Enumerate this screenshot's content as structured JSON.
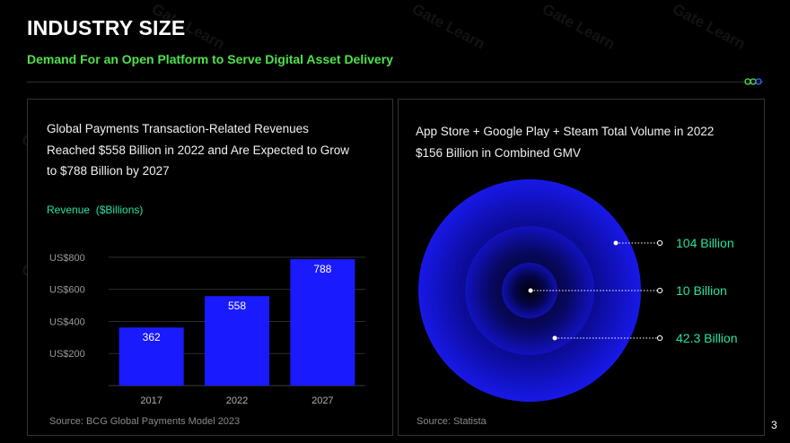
{
  "header": {
    "title": "INDUSTRY SIZE",
    "subtitle": "Demand For an Open Platform to Serve Digital Asset Delivery"
  },
  "left_panel": {
    "heading_lines": [
      "Global Payments Transaction-Related Revenues",
      "Reached $558 Billion in 2022 and Are Expected to Grow",
      "to $788 Billion by 2027"
    ],
    "revenue_label": "Revenue  ($Billions)",
    "source": "Source: BCG Global Payments Model 2023"
  },
  "right_panel": {
    "heading_lines": [
      "App Store + Google Play + Steam Total Volume in 2022",
      "$156 Billion in Combined GMV"
    ],
    "source": "Source: Statista"
  },
  "page_number": "3",
  "watermark": "Gate Learn",
  "colors": {
    "bar": "#1a1aff",
    "accent_green": "#4ee34a",
    "accent_teal": "#26e3a0",
    "circle_core": "#1010e0"
  },
  "chart_data": [
    {
      "type": "bar",
      "title": "Revenue ($Billions)",
      "categories": [
        "2017",
        "2022",
        "2027"
      ],
      "values": [
        362,
        558,
        788
      ],
      "value_labels": [
        "362",
        "558",
        "788"
      ],
      "ylim": [
        0,
        900
      ],
      "yticks": [
        200,
        400,
        600,
        800
      ],
      "ytick_labels": [
        "US$200",
        "US$400",
        "US$600",
        "US$800"
      ],
      "grid": true
    },
    {
      "type": "pie",
      "subtype": "concentric-circles",
      "title": "App Store + Google Play + Steam Total Volume in 2022",
      "total_label": "$156 Billion in Combined GMV",
      "rings": [
        {
          "name": "outer",
          "value": 104,
          "label": "104 Billion"
        },
        {
          "name": "inner",
          "value": 10,
          "label": "10 Billion"
        },
        {
          "name": "middle",
          "value": 42.3,
          "label": "42.3 Billion"
        }
      ]
    }
  ]
}
